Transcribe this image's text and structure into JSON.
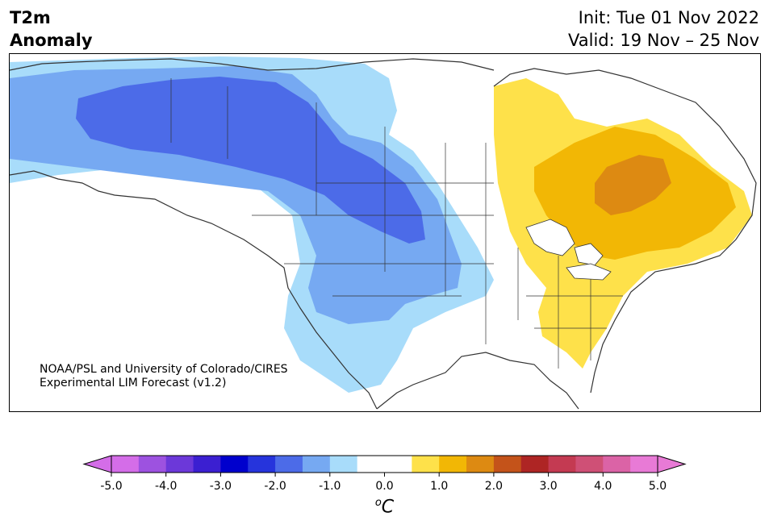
{
  "title": {
    "line1": "T2m",
    "line2": "Anomaly"
  },
  "header_right": {
    "init": "Init: Tue 01 Nov 2022",
    "valid": "Valid: 19 Nov – 25 Nov"
  },
  "credit": {
    "line1": "NOAA/PSL and University of Colorado/CIRES",
    "line2": "Experimental LIM Forecast (v1.2)"
  },
  "colorbar": {
    "ticks": [
      "-5.0",
      "-4.0",
      "-3.0",
      "-2.0",
      "-1.0",
      "0.0",
      "1.0",
      "2.0",
      "3.0",
      "4.0",
      "5.0"
    ],
    "colors": [
      "#d46de8",
      "#9d52e0",
      "#6c38d9",
      "#3b1fd1",
      "#0000cd",
      "#2634dc",
      "#4c6be8",
      "#76a9f2",
      "#a8dcfa",
      "#ffffff",
      "#ffffff",
      "#fee14a",
      "#f2b705",
      "#dd8a12",
      "#c4531a",
      "#ae2524",
      "#c43a52",
      "#cf5076",
      "#db63a6",
      "#e87ad6"
    ],
    "extend_low_color": "#d46de8",
    "extend_high_color": "#e87ad6",
    "unit_base": "C",
    "unit_sup": "o"
  },
  "map_regions": [
    {
      "name": "cold-anomaly-light",
      "color": "#a8dcfa"
    },
    {
      "name": "cold-anomaly-medium",
      "color": "#76a9f2"
    },
    {
      "name": "cold-anomaly-strong",
      "color": "#4c6be8"
    },
    {
      "name": "warm-anomaly-light",
      "color": "#fee14a"
    },
    {
      "name": "warm-anomaly-medium",
      "color": "#f2b705"
    },
    {
      "name": "warm-anomaly-strong",
      "color": "#dd8a12"
    }
  ]
}
